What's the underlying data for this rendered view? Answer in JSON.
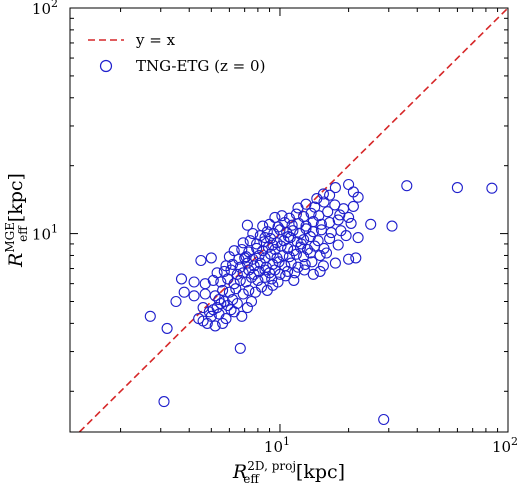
{
  "chart_data": {
    "type": "scatter",
    "xscale": "log",
    "yscale": "log",
    "xlim": [
      1.2,
      100
    ],
    "ylim": [
      1.32,
      100
    ],
    "x_ticks": [
      {
        "value": 10,
        "base": "10",
        "exp": "1"
      },
      {
        "value": 100,
        "base": "10",
        "exp": "2"
      }
    ],
    "y_ticks": [
      {
        "value": 10,
        "base": "10",
        "exp": "1"
      },
      {
        "value": 100,
        "base": "10",
        "exp": "2"
      }
    ],
    "xlabel": {
      "main": "R",
      "sub": "eff",
      "sup": "2D, proj",
      "unit": "[kpc]"
    },
    "ylabel": {
      "main": "R",
      "sub": "eff",
      "sup": "MGE",
      "unit": "[kpc]"
    },
    "legend": {
      "position": "top-left",
      "items": [
        {
          "kind": "line",
          "label": "y = x",
          "color": "#d62728"
        },
        {
          "kind": "marker",
          "label": "TNG-ETG (z = 0)",
          "color": "#1f1fcc"
        }
      ]
    },
    "reference_line": {
      "name": "y = x",
      "color": "#d62728",
      "style": "dashed"
    },
    "series": [
      {
        "name": "TNG-ETG (z = 0)",
        "color": "#1f1fcc",
        "marker": "open-circle",
        "points": [
          [
            3.1,
            1.8
          ],
          [
            28.5,
            1.5
          ],
          [
            6.7,
            3.1
          ],
          [
            2.7,
            4.3
          ],
          [
            3.2,
            3.8
          ],
          [
            4.4,
            4.2
          ],
          [
            4.6,
            4.1
          ],
          [
            4.8,
            4.0
          ],
          [
            5.0,
            4.3
          ],
          [
            5.2,
            3.9
          ],
          [
            5.4,
            4.4
          ],
          [
            5.6,
            4.0
          ],
          [
            5.8,
            4.2
          ],
          [
            4.9,
            4.5
          ],
          [
            5.1,
            4.6
          ],
          [
            5.3,
            4.7
          ],
          [
            5.5,
            4.9
          ],
          [
            5.7,
            5.0
          ],
          [
            5.9,
            4.8
          ],
          [
            6.1,
            4.6
          ],
          [
            6.3,
            4.5
          ],
          [
            6.5,
            4.9
          ],
          [
            6.8,
            4.3
          ],
          [
            7.2,
            4.7
          ],
          [
            7.5,
            5.0
          ],
          [
            3.5,
            5.0
          ],
          [
            3.8,
            5.5
          ],
          [
            4.2,
            5.3
          ],
          [
            4.7,
            5.4
          ],
          [
            5.2,
            5.3
          ],
          [
            5.6,
            5.6
          ],
          [
            6.0,
            5.5
          ],
          [
            6.4,
            5.7
          ],
          [
            6.9,
            5.4
          ],
          [
            7.3,
            5.6
          ],
          [
            7.8,
            5.5
          ],
          [
            8.3,
            5.8
          ],
          [
            8.8,
            5.6
          ],
          [
            9.3,
            5.9
          ],
          [
            3.7,
            6.3
          ],
          [
            4.2,
            6.1
          ],
          [
            4.7,
            6.0
          ],
          [
            5.1,
            6.2
          ],
          [
            5.5,
            6.1
          ],
          [
            5.9,
            6.3
          ],
          [
            6.3,
            6.0
          ],
          [
            6.7,
            6.2
          ],
          [
            7.1,
            6.1
          ],
          [
            7.5,
            6.4
          ],
          [
            8.0,
            6.2
          ],
          [
            8.6,
            6.4
          ],
          [
            9.2,
            6.3
          ],
          [
            9.8,
            6.1
          ],
          [
            10.6,
            6.5
          ],
          [
            11.5,
            6.2
          ],
          [
            5.3,
            6.7
          ],
          [
            5.7,
            6.8
          ],
          [
            6.1,
            6.9
          ],
          [
            6.5,
            6.6
          ],
          [
            6.9,
            6.7
          ],
          [
            7.3,
            6.9
          ],
          [
            7.7,
            6.6
          ],
          [
            8.1,
            6.8
          ],
          [
            8.6,
            6.9
          ],
          [
            9.0,
            6.7
          ],
          [
            9.5,
            6.9
          ],
          [
            10.0,
            6.6
          ],
          [
            10.8,
            6.8
          ],
          [
            11.6,
            6.7
          ],
          [
            12.8,
            6.9
          ],
          [
            14.0,
            6.6
          ],
          [
            15.0,
            6.8
          ],
          [
            5.8,
            7.2
          ],
          [
            6.2,
            7.3
          ],
          [
            6.7,
            7.1
          ],
          [
            7.2,
            7.4
          ],
          [
            7.7,
            7.2
          ],
          [
            8.2,
            7.4
          ],
          [
            8.7,
            7.1
          ],
          [
            9.3,
            7.3
          ],
          [
            9.9,
            7.5
          ],
          [
            10.5,
            7.2
          ],
          [
            11.2,
            7.4
          ],
          [
            12.0,
            7.1
          ],
          [
            12.9,
            7.3
          ],
          [
            13.8,
            7.5
          ],
          [
            15.5,
            7.2
          ],
          [
            17.5,
            7.4
          ],
          [
            20.0,
            7.7
          ],
          [
            4.5,
            7.6
          ],
          [
            5.0,
            7.8
          ],
          [
            6.0,
            7.9
          ],
          [
            6.6,
            7.7
          ],
          [
            7.1,
            7.9
          ],
          [
            7.6,
            7.7
          ],
          [
            8.1,
            8.0
          ],
          [
            8.6,
            7.8
          ],
          [
            9.1,
            8.1
          ],
          [
            9.7,
            7.8
          ],
          [
            10.3,
            8.0
          ],
          [
            11.0,
            7.9
          ],
          [
            11.8,
            8.1
          ],
          [
            12.7,
            7.9
          ],
          [
            13.6,
            8.2
          ],
          [
            15.0,
            8.0
          ],
          [
            16.0,
            8.2
          ],
          [
            6.3,
            8.4
          ],
          [
            6.8,
            8.5
          ],
          [
            7.3,
            8.3
          ],
          [
            7.9,
            8.6
          ],
          [
            8.4,
            8.4
          ],
          [
            8.9,
            8.7
          ],
          [
            9.5,
            8.5
          ],
          [
            10.1,
            8.8
          ],
          [
            10.8,
            8.6
          ],
          [
            11.5,
            8.4
          ],
          [
            12.3,
            8.7
          ],
          [
            13.2,
            8.5
          ],
          [
            14.2,
            8.8
          ],
          [
            15.6,
            8.6
          ],
          [
            18.0,
            8.9
          ],
          [
            6.9,
            9.1
          ],
          [
            7.4,
            9.3
          ],
          [
            7.9,
            9.0
          ],
          [
            8.5,
            9.2
          ],
          [
            9.1,
            9.5
          ],
          [
            9.7,
            9.1
          ],
          [
            10.4,
            9.3
          ],
          [
            11.1,
            9.6
          ],
          [
            11.9,
            9.2
          ],
          [
            12.7,
            9.4
          ],
          [
            13.6,
            9.7
          ],
          [
            14.7,
            9.3
          ],
          [
            16.5,
            9.5
          ],
          [
            19.5,
            9.8
          ],
          [
            21.5,
            7.8
          ],
          [
            7.6,
            10.0
          ],
          [
            8.2,
            9.8
          ],
          [
            8.8,
            10.2
          ],
          [
            9.4,
            10.0
          ],
          [
            10.0,
            10.4
          ],
          [
            10.7,
            10.1
          ],
          [
            11.4,
            10.3
          ],
          [
            12.2,
            10.0
          ],
          [
            13.0,
            10.5
          ],
          [
            14.0,
            10.2
          ],
          [
            15.2,
            10.4
          ],
          [
            16.8,
            10.1
          ],
          [
            18.5,
            10.3
          ],
          [
            22.0,
            9.6
          ],
          [
            8.4,
            10.8
          ],
          [
            9.0,
            11.0
          ],
          [
            9.8,
            10.7
          ],
          [
            10.5,
            11.2
          ],
          [
            11.3,
            10.9
          ],
          [
            12.1,
            11.1
          ],
          [
            13.0,
            10.8
          ],
          [
            14.0,
            11.3
          ],
          [
            15.2,
            11.0
          ],
          [
            16.5,
            11.2
          ],
          [
            18.0,
            11.5
          ],
          [
            20.5,
            11.1
          ],
          [
            25.0,
            11.0
          ],
          [
            31.0,
            10.8
          ],
          [
            7.2,
            10.9
          ],
          [
            9.5,
            11.8
          ],
          [
            10.2,
            12.0
          ],
          [
            11.0,
            11.7
          ],
          [
            11.8,
            12.2
          ],
          [
            12.7,
            11.9
          ],
          [
            13.7,
            12.3
          ],
          [
            14.8,
            12.0
          ],
          [
            16.2,
            12.5
          ],
          [
            18.3,
            12.1
          ],
          [
            20.0,
            11.8
          ],
          [
            12.0,
            13.0
          ],
          [
            13.0,
            13.5
          ],
          [
            14.2,
            13.1
          ],
          [
            15.6,
            13.8
          ],
          [
            17.4,
            13.4
          ],
          [
            19.0,
            12.9
          ],
          [
            21.0,
            13.2
          ],
          [
            22.0,
            14.5
          ],
          [
            21.0,
            15.3
          ],
          [
            14.5,
            14.3
          ],
          [
            15.5,
            15.0
          ],
          [
            16.5,
            14.8
          ],
          [
            17.5,
            16.0
          ],
          [
            20.0,
            16.5
          ],
          [
            36.0,
            16.3
          ],
          [
            60.0,
            16.0
          ],
          [
            85.0,
            15.9
          ],
          [
            12.4,
            9.0
          ],
          [
            10.9,
            9.7
          ],
          [
            9.3,
            8.9
          ],
          [
            7.0,
            7.8
          ],
          [
            5.4,
            5.1
          ],
          [
            6.2,
            5.1
          ],
          [
            4.6,
            4.7
          ],
          [
            8.6,
            9.6
          ]
        ]
      }
    ]
  }
}
